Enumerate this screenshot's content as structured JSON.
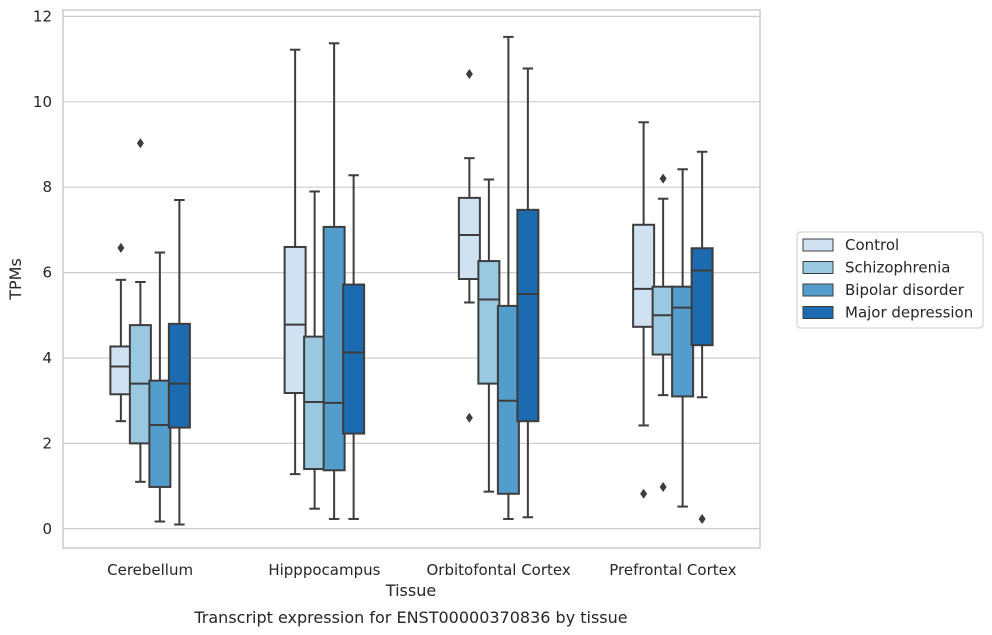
{
  "chart_data": {
    "type": "box",
    "caption": "Transcript expression for ENST00000370836 by tissue",
    "xlabel": "Tissue",
    "ylabel": "TPMs",
    "ylim": [
      -0.45,
      12.15
    ],
    "yticks": [
      0,
      2,
      4,
      6,
      8,
      10,
      12
    ],
    "grid": true,
    "legend_position": "right",
    "categories": [
      "Cerebellum",
      "Hipppocampus",
      "Orbitofontal Cortex",
      "Prefrontal Cortex"
    ],
    "series": [
      {
        "name": "Control",
        "color": "#d0e1f2",
        "boxes": [
          {
            "whisker_low": 2.52,
            "q1": 3.15,
            "median": 3.8,
            "q3": 4.27,
            "whisker_high": 5.83,
            "outliers": [
              6.58
            ]
          },
          {
            "whisker_low": 1.28,
            "q1": 3.18,
            "median": 4.78,
            "q3": 6.6,
            "whisker_high": 11.22,
            "outliers": []
          },
          {
            "whisker_low": 5.3,
            "q1": 5.85,
            "median": 6.88,
            "q3": 7.75,
            "whisker_high": 8.68,
            "outliers": [
              2.6,
              10.65
            ]
          },
          {
            "whisker_low": 2.42,
            "q1": 4.73,
            "median": 5.62,
            "q3": 7.12,
            "whisker_high": 9.52,
            "outliers": [
              0.82
            ]
          }
        ]
      },
      {
        "name": "Schizophrenia",
        "color": "#9ac8e0",
        "boxes": [
          {
            "whisker_low": 1.1,
            "q1": 2.0,
            "median": 3.4,
            "q3": 4.77,
            "whisker_high": 5.78,
            "outliers": [
              9.03
            ]
          },
          {
            "whisker_low": 0.47,
            "q1": 1.4,
            "median": 2.97,
            "q3": 4.5,
            "whisker_high": 7.9,
            "outliers": []
          },
          {
            "whisker_low": 0.87,
            "q1": 3.4,
            "median": 5.37,
            "q3": 6.27,
            "whisker_high": 8.18,
            "outliers": []
          },
          {
            "whisker_low": 3.13,
            "q1": 4.08,
            "median": 5.0,
            "q3": 5.67,
            "whisker_high": 7.73,
            "outliers": [
              0.98,
              8.2
            ]
          }
        ]
      },
      {
        "name": "Bipolar disorder",
        "color": "#529dcc",
        "boxes": [
          {
            "whisker_low": 0.17,
            "q1": 0.98,
            "median": 2.43,
            "q3": 3.47,
            "whisker_high": 6.47,
            "outliers": []
          },
          {
            "whisker_low": 0.23,
            "q1": 1.37,
            "median": 2.95,
            "q3": 7.07,
            "whisker_high": 11.37,
            "outliers": []
          },
          {
            "whisker_low": 0.23,
            "q1": 0.82,
            "median": 3.0,
            "q3": 5.22,
            "whisker_high": 11.52,
            "outliers": []
          },
          {
            "whisker_low": 0.52,
            "q1": 3.1,
            "median": 5.18,
            "q3": 5.67,
            "whisker_high": 8.42,
            "outliers": []
          }
        ]
      },
      {
        "name": "Major depression",
        "color": "#1c6aaf",
        "boxes": [
          {
            "whisker_low": 0.1,
            "q1": 2.37,
            "median": 3.4,
            "q3": 4.8,
            "whisker_high": 7.7,
            "outliers": []
          },
          {
            "whisker_low": 0.23,
            "q1": 2.23,
            "median": 4.13,
            "q3": 5.72,
            "whisker_high": 8.28,
            "outliers": []
          },
          {
            "whisker_low": 0.27,
            "q1": 2.52,
            "median": 5.5,
            "q3": 7.47,
            "whisker_high": 10.78,
            "outliers": []
          },
          {
            "whisker_low": 3.08,
            "q1": 4.3,
            "median": 6.05,
            "q3": 6.57,
            "whisker_high": 8.83,
            "outliers": [
              0.23
            ]
          }
        ]
      }
    ]
  }
}
